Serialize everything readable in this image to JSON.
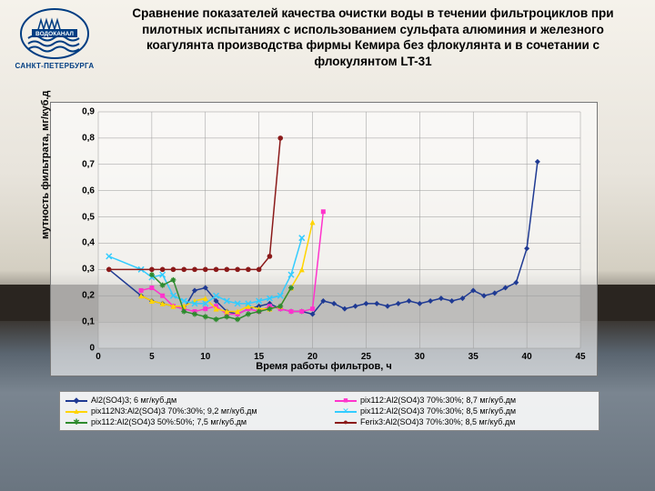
{
  "logo": {
    "caption": "САНКТ-ПЕТЕРБУРГА",
    "brand": "ВОДОКАНАЛ",
    "color": "#003d82"
  },
  "title": "Сравнение показателей качества очистки воды в течении фильтроциклов при пилотных испытаниях с использованием сульфата алюминия и железного коагулянта производства фирмы Кемира без флокулянта и в сочетании с флокулянтом LT-31",
  "chart": {
    "type": "line",
    "xlabel": "Время работы фильтров, ч",
    "ylabel": "мутность фильтрата, мг/куб.д",
    "xlim": [
      0,
      45
    ],
    "ylim": [
      0,
      0.9
    ],
    "xticks": [
      0,
      5,
      10,
      15,
      20,
      25,
      30,
      35,
      40,
      45
    ],
    "yticks": [
      0,
      0.1,
      0.2,
      0.3,
      0.4,
      0.5,
      0.6,
      0.7,
      0.8,
      0.9
    ],
    "ytick_labels": [
      "0",
      "0,1",
      "0,2",
      "0,3",
      "0,4",
      "0,5",
      "0,6",
      "0,7",
      "0,8",
      "0,9"
    ],
    "plot_bg": "rgba(255,255,255,.25)",
    "grid_color": "#999",
    "series": [
      {
        "name": "Al2(SO4)3; 6 мг/куб.дм",
        "color": "#1f3a93",
        "marker": "diamond",
        "x": [
          1,
          4,
          5,
          6,
          7,
          8,
          9,
          10,
          11,
          12,
          13,
          14,
          15,
          16,
          17,
          18,
          19,
          20,
          21,
          22,
          23,
          24,
          25,
          26,
          27,
          28,
          29,
          30,
          31,
          32,
          33,
          34,
          35,
          36,
          37,
          38,
          39,
          40,
          41
        ],
        "y": [
          0.3,
          0.2,
          0.18,
          0.17,
          0.16,
          0.15,
          0.22,
          0.23,
          0.18,
          0.14,
          0.13,
          0.15,
          0.16,
          0.17,
          0.15,
          0.14,
          0.14,
          0.13,
          0.18,
          0.17,
          0.15,
          0.16,
          0.17,
          0.17,
          0.16,
          0.17,
          0.18,
          0.17,
          0.18,
          0.19,
          0.18,
          0.19,
          0.22,
          0.2,
          0.21,
          0.23,
          0.25,
          0.38,
          0.71
        ]
      },
      {
        "name": "pix112:Al2(SO4)3 70%:30%; 8,7 мг/куб.дм",
        "color": "#ff33cc",
        "marker": "square",
        "x": [
          4,
          5,
          6,
          7,
          8,
          9,
          10,
          11,
          12,
          13,
          14,
          15,
          16,
          17,
          18,
          19,
          20,
          21
        ],
        "y": [
          0.22,
          0.23,
          0.2,
          0.16,
          0.15,
          0.14,
          0.15,
          0.16,
          0.13,
          0.13,
          0.15,
          0.14,
          0.16,
          0.15,
          0.14,
          0.14,
          0.15,
          0.52
        ]
      },
      {
        "name": "pix112N3:Al2(SO4)3 70%:30%; 9,2 мг/куб.дм",
        "color": "#ffd400",
        "marker": "triangle",
        "x": [
          4,
          5,
          6,
          7,
          8,
          9,
          10,
          11,
          12,
          13,
          14,
          15,
          16,
          17,
          18,
          19,
          20
        ],
        "y": [
          0.2,
          0.18,
          0.17,
          0.16,
          0.16,
          0.18,
          0.19,
          0.15,
          0.14,
          0.14,
          0.16,
          0.15,
          0.15,
          0.16,
          0.23,
          0.3,
          0.48
        ]
      },
      {
        "name": "pix112:Al2(SO4)3 70%:30%; 8,5 мг/куб.дм",
        "color": "#33ccff",
        "marker": "x",
        "x": [
          1,
          4,
          5,
          6,
          7,
          8,
          9,
          10,
          11,
          12,
          13,
          14,
          15,
          16,
          17,
          18,
          19
        ],
        "y": [
          0.35,
          0.3,
          0.27,
          0.28,
          0.2,
          0.18,
          0.17,
          0.17,
          0.2,
          0.18,
          0.17,
          0.17,
          0.18,
          0.19,
          0.2,
          0.28,
          0.42
        ]
      },
      {
        "name": "pix112:Al2(SO4)3 50%:50%; 7,5 мг/куб.дм",
        "color": "#2e8b2e",
        "marker": "asterisk",
        "x": [
          5,
          6,
          7,
          8,
          9,
          10,
          11,
          12,
          13,
          14,
          15,
          16,
          17,
          18
        ],
        "y": [
          0.28,
          0.24,
          0.26,
          0.14,
          0.13,
          0.12,
          0.11,
          0.12,
          0.11,
          0.13,
          0.14,
          0.15,
          0.16,
          0.23
        ]
      },
      {
        "name": "Ferix3:Al2(SO4)3 70%:30%; 8,5 мг/куб.дм",
        "color": "#8b1a1a",
        "marker": "circle",
        "x": [
          1,
          5,
          6,
          7,
          8,
          9,
          10,
          11,
          12,
          13,
          14,
          15,
          16,
          17
        ],
        "y": [
          0.3,
          0.3,
          0.3,
          0.3,
          0.3,
          0.3,
          0.3,
          0.3,
          0.3,
          0.3,
          0.3,
          0.3,
          0.35,
          0.8
        ]
      }
    ]
  }
}
